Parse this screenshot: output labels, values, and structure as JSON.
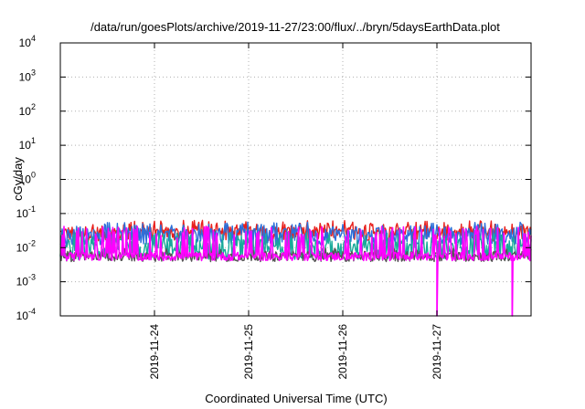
{
  "chart_data": {
    "type": "line",
    "title": "/data/run/goesPlots/archive/2019-11-27/23:00/flux/../bryn/5daysEarthData.plot",
    "xlabel": "Coordinated Universal Time (UTC)",
    "ylabel": "cGy/day",
    "yscale": "log",
    "ylim": [
      0.0001,
      10000
    ],
    "xlim": [
      "2019-11-23T00:00",
      "2019-11-28T00:00"
    ],
    "grid": true,
    "yticks": [
      {
        "base": "10",
        "exp": "4",
        "value": 10000
      },
      {
        "base": "10",
        "exp": "3",
        "value": 1000
      },
      {
        "base": "10",
        "exp": "2",
        "value": 100
      },
      {
        "base": "10",
        "exp": "1",
        "value": 10
      },
      {
        "base": "10",
        "exp": "0",
        "value": 1
      },
      {
        "base": "10",
        "exp": "-1",
        "value": 0.1
      },
      {
        "base": "10",
        "exp": "-2",
        "value": 0.01
      },
      {
        "base": "10",
        "exp": "-3",
        "value": 0.001
      },
      {
        "base": "10",
        "exp": "-4",
        "value": 0.0001
      }
    ],
    "xticks": [
      {
        "label": "2019-11-24",
        "value": "2019-11-24T00:00"
      },
      {
        "label": "2019-11-25",
        "value": "2019-11-25T00:00"
      },
      {
        "label": "2019-11-26",
        "value": "2019-11-26T00:00"
      },
      {
        "label": "2019-11-27",
        "value": "2019-11-27T00:00"
      }
    ],
    "series": [
      {
        "color": "#e8201c",
        "baseline": 0.026,
        "noise": 0.22,
        "spike": 0.045,
        "drops": []
      },
      {
        "color": "#2c6fd9",
        "baseline": 0.021,
        "noise": 0.25,
        "spike": 0.04,
        "drops": []
      },
      {
        "color": "#1aaa9a",
        "baseline": 0.009,
        "noise": 0.3,
        "spike": 0.02,
        "drops": []
      },
      {
        "color": "#555555",
        "baseline": 0.0055,
        "noise": 0.15,
        "spike": 0.007,
        "drops": []
      },
      {
        "color": "#ff00ff",
        "baseline": 0.0055,
        "noise": 0.12,
        "spike": 0.03,
        "drops": [
          "2019-11-27T00:00",
          "2019-11-27T00:02",
          "2019-11-27T19:10",
          "2019-11-27T19:14"
        ]
      }
    ]
  }
}
